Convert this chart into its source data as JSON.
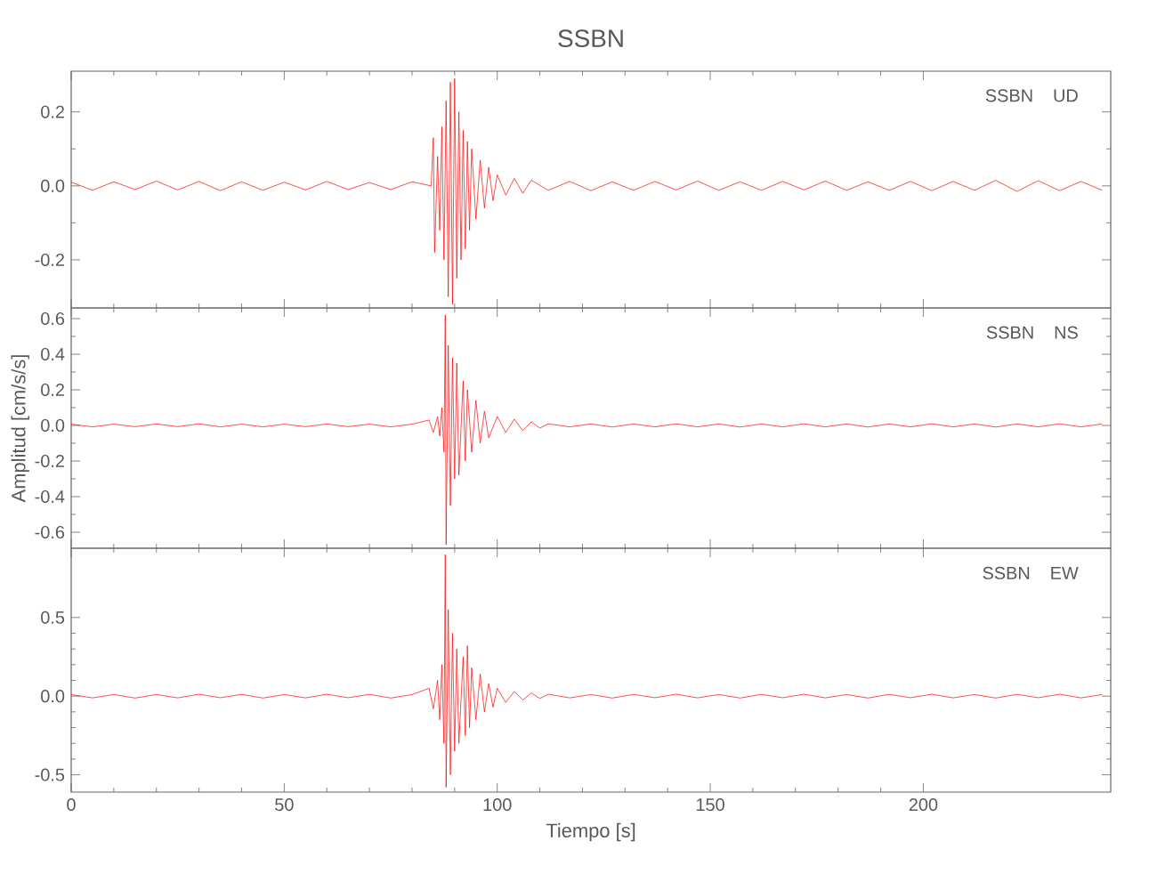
{
  "chart_data": [
    {
      "type": "line",
      "title": "SSBN",
      "annotations": [
        "SSBN",
        "UD"
      ],
      "color": "#ff0000",
      "tick_labels": "y",
      "x": [
        0,
        5,
        10,
        15,
        20,
        25,
        30,
        35,
        40,
        45,
        50,
        55,
        60,
        65,
        70,
        75,
        80,
        84.5,
        85,
        85.3,
        86,
        86.5,
        87,
        87.5,
        88,
        88.5,
        89,
        89.5,
        90,
        90.5,
        91,
        91.5,
        92,
        92.5,
        93,
        93.5,
        94,
        95,
        96,
        97,
        98,
        99,
        100,
        102,
        104,
        106,
        108,
        112,
        117,
        122,
        127,
        132,
        137,
        142,
        147,
        152,
        157,
        162,
        167,
        172,
        177,
        182,
        187,
        192,
        197,
        202,
        207,
        212,
        217,
        222,
        227,
        232,
        237,
        242
      ],
      "values": [
        0.01,
        -0.012,
        0.011,
        -0.01,
        0.013,
        -0.011,
        0.012,
        -0.013,
        0.011,
        -0.012,
        0.01,
        -0.011,
        0.012,
        -0.01,
        0.009,
        -0.01,
        0.011,
        0.0,
        0.13,
        -0.18,
        0.08,
        -0.12,
        0.16,
        -0.2,
        0.23,
        -0.3,
        0.28,
        -0.32,
        0.29,
        -0.25,
        0.2,
        -0.2,
        0.15,
        -0.17,
        0.12,
        -0.12,
        0.1,
        -0.09,
        0.07,
        -0.06,
        0.05,
        -0.04,
        0.03,
        -0.025,
        0.02,
        -0.02,
        0.015,
        -0.012,
        0.012,
        -0.013,
        0.011,
        -0.012,
        0.012,
        -0.011,
        0.013,
        -0.012,
        0.011,
        -0.012,
        0.012,
        -0.011,
        0.013,
        -0.012,
        0.011,
        -0.012,
        0.012,
        -0.013,
        0.012,
        -0.012,
        0.015,
        -0.015,
        0.014,
        -0.013,
        0.012,
        -0.012
      ],
      "xlim": [
        0,
        244
      ],
      "xticks": [
        0,
        50,
        100,
        150,
        200
      ],
      "ylim": [
        -0.33,
        0.31
      ],
      "yticks": [
        {
          "value": -0.2,
          "label": "-0.2"
        },
        {
          "value": 0,
          "label": "0.0"
        },
        {
          "value": 0.2,
          "label": "0.2"
        }
      ]
    },
    {
      "type": "line",
      "ylabel": "Amplitud [cm/s/s]",
      "annotations": [
        "SSBN",
        "NS"
      ],
      "color": "#ff0000",
      "tick_labels": "y",
      "x": [
        0,
        5,
        10,
        15,
        20,
        25,
        30,
        35,
        40,
        45,
        50,
        55,
        60,
        65,
        70,
        75,
        80,
        84,
        85,
        86,
        86.5,
        87,
        87.5,
        87.8,
        88,
        88.5,
        89,
        89.5,
        90,
        90.5,
        91,
        92,
        92.5,
        93,
        94,
        95,
        96,
        97,
        98,
        100,
        102,
        104,
        106,
        108,
        110,
        112,
        117,
        122,
        127,
        132,
        137,
        142,
        147,
        152,
        157,
        162,
        167,
        172,
        177,
        182,
        187,
        192,
        197,
        202,
        207,
        212,
        217,
        222,
        227,
        232,
        237,
        242
      ],
      "values": [
        0.007,
        -0.008,
        0.007,
        -0.007,
        0.008,
        -0.007,
        0.009,
        -0.008,
        0.007,
        -0.008,
        0.007,
        -0.007,
        0.008,
        -0.007,
        0.007,
        -0.008,
        0.007,
        0.03,
        -0.04,
        0.05,
        -0.06,
        0.1,
        -0.15,
        0.62,
        -0.67,
        0.45,
        -0.45,
        0.38,
        -0.3,
        0.35,
        -0.28,
        0.25,
        -0.2,
        0.2,
        -0.15,
        0.14,
        -0.1,
        0.08,
        -0.07,
        0.05,
        -0.04,
        0.035,
        -0.03,
        0.02,
        -0.015,
        0.009,
        -0.008,
        0.008,
        -0.009,
        0.008,
        -0.008,
        0.009,
        -0.008,
        0.008,
        -0.009,
        0.008,
        -0.008,
        0.009,
        -0.008,
        0.008,
        -0.009,
        0.008,
        -0.008,
        0.009,
        -0.008,
        0.008,
        -0.009,
        0.008,
        -0.008,
        0.009,
        -0.008,
        0.008
      ],
      "xlim": [
        0,
        244
      ],
      "xticks": [
        0,
        50,
        100,
        150,
        200
      ],
      "ylim": [
        -0.69,
        0.66
      ],
      "yticks": [
        {
          "value": -0.6,
          "label": "-0.6"
        },
        {
          "value": -0.4,
          "label": "-0.4"
        },
        {
          "value": -0.2,
          "label": "-0.2"
        },
        {
          "value": 0,
          "label": "0.0"
        },
        {
          "value": 0.2,
          "label": "0.2"
        },
        {
          "value": 0.4,
          "label": "0.4"
        },
        {
          "value": 0.6,
          "label": "0.6"
        }
      ]
    },
    {
      "type": "line",
      "xlabel": "Tiempo [s]",
      "annotations": [
        "SSBN",
        "EW"
      ],
      "color": "#ff0000",
      "x": [
        0,
        5,
        10,
        15,
        20,
        25,
        30,
        35,
        40,
        45,
        50,
        55,
        60,
        65,
        70,
        75,
        80,
        84,
        85,
        86,
        86.5,
        87,
        87.5,
        87.8,
        88,
        88.5,
        89,
        89.5,
        90,
        90.5,
        91,
        92,
        92.5,
        93,
        93.5,
        94,
        95,
        96,
        97,
        98,
        99,
        100,
        102,
        104,
        106,
        108,
        110,
        112,
        117,
        122,
        127,
        132,
        137,
        142,
        147,
        152,
        157,
        162,
        167,
        172,
        177,
        182,
        187,
        192,
        197,
        202,
        207,
        212,
        217,
        222,
        227,
        232,
        237,
        242
      ],
      "values": [
        0.01,
        -0.011,
        0.01,
        -0.012,
        0.01,
        -0.011,
        0.012,
        -0.01,
        0.011,
        -0.012,
        0.01,
        -0.011,
        0.012,
        -0.01,
        0.011,
        -0.012,
        0.01,
        0.05,
        -0.08,
        0.1,
        -0.15,
        0.2,
        -0.3,
        0.9,
        -0.58,
        0.55,
        -0.5,
        0.4,
        -0.35,
        0.3,
        -0.3,
        0.25,
        -0.25,
        0.32,
        -0.2,
        0.18,
        -0.15,
        0.14,
        -0.1,
        0.08,
        -0.07,
        0.05,
        -0.04,
        0.03,
        -0.025,
        0.02,
        -0.015,
        0.012,
        -0.011,
        0.01,
        -0.012,
        0.011,
        -0.01,
        0.012,
        -0.011,
        0.01,
        -0.012,
        0.011,
        -0.01,
        0.012,
        -0.011,
        0.01,
        -0.012,
        0.011,
        -0.01,
        0.012,
        -0.011,
        0.01,
        -0.012,
        0.011,
        -0.01,
        0.012,
        -0.011,
        0.01
      ],
      "xlim": [
        0,
        244
      ],
      "xticks": [
        0,
        50,
        100,
        150,
        200
      ],
      "ylim": [
        -0.61,
        0.94
      ],
      "yticks": [
        {
          "value": -0.5,
          "label": "-0.5"
        },
        {
          "value": 0,
          "label": "0.0"
        },
        {
          "value": 0.5,
          "label": "0.5"
        }
      ]
    }
  ]
}
